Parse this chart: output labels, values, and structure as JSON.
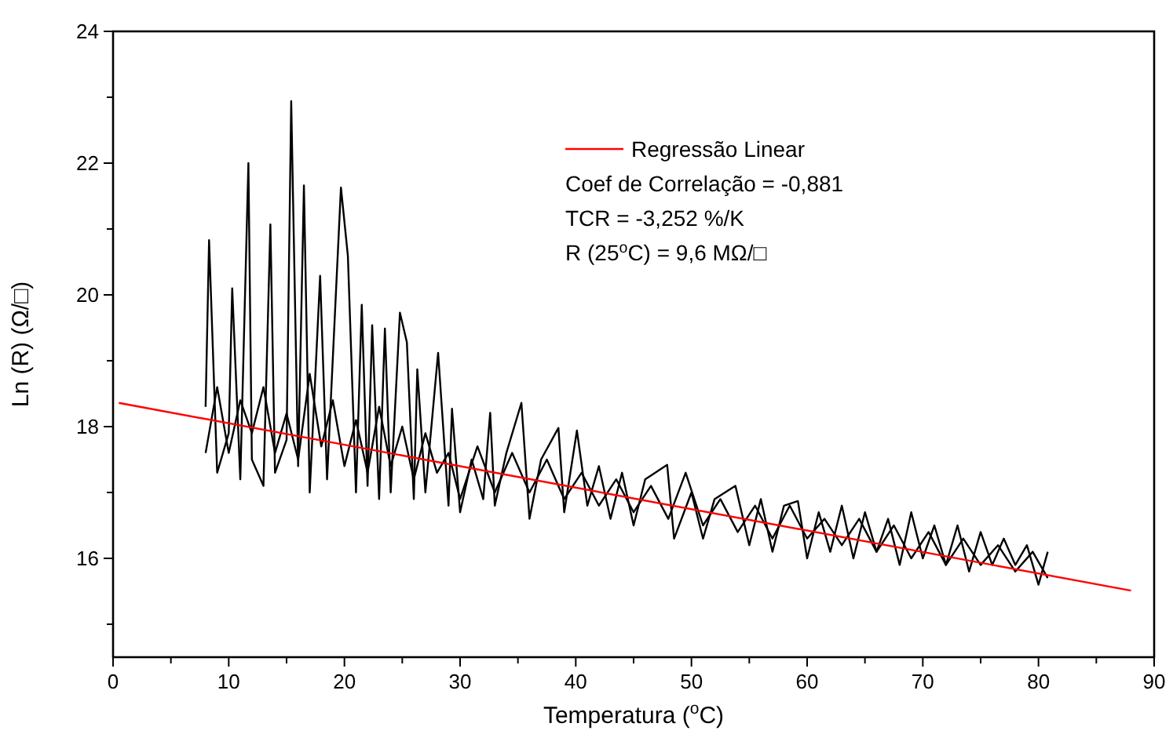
{
  "chart_data": {
    "type": "line",
    "xlabel": "Temperatura ($^{o}$C)",
    "ylabel": "Ln (R) (Ω/□)",
    "xlim": [
      0,
      90
    ],
    "ylim": [
      14.5,
      24
    ],
    "xticks": [
      0,
      {
        "value": 5,
        "label": null
      },
      10,
      {
        "value": 15,
        "label": null
      },
      20,
      {
        "value": 25,
        "label": null
      },
      30,
      {
        "value": 35,
        "label": null
      },
      40,
      {
        "value": 45,
        "label": null
      },
      50,
      {
        "value": 55,
        "label": null
      },
      60,
      {
        "value": 65,
        "label": null
      },
      70,
      {
        "value": 75,
        "label": null
      },
      80,
      {
        "value": 85,
        "label": null
      },
      90
    ],
    "yticks": [
      {
        "value": 15,
        "label": null
      },
      16,
      {
        "value": 17,
        "label": null
      },
      18,
      {
        "value": 19,
        "label": null
      },
      20,
      {
        "value": 21,
        "label": null
      },
      22,
      {
        "value": 23,
        "label": null
      },
      24
    ],
    "grid": false,
    "legend": "top",
    "marker": "none",
    "line_style": "solid",
    "series": [
      {
        "color": "#000000",
        "x": [
          8,
          8.3,
          9,
          10,
          10.3,
          11,
          11.7,
          12,
          13,
          13.6,
          14,
          15,
          15.4,
          16,
          16.5,
          17,
          17.9,
          18.5,
          19.7,
          20.3,
          21,
          21.5,
          22,
          22.4,
          23,
          23.5,
          24,
          24.8,
          25.4,
          26,
          26.3,
          27,
          28.1,
          29,
          29.3,
          30,
          31,
          32,
          32.6,
          33,
          34,
          35.3,
          36,
          37,
          38.5,
          39,
          40.1,
          41,
          42,
          43,
          44,
          45,
          46,
          47.9,
          48.5,
          50,
          51,
          52,
          53.8,
          55,
          56,
          57,
          58,
          59.2,
          60,
          61,
          62,
          63,
          64,
          65,
          66,
          67,
          68,
          69,
          70,
          71,
          72,
          73,
          74,
          75,
          76,
          77,
          78,
          79,
          80,
          80.8
        ],
        "values": [
          18.3,
          20.83,
          17.3,
          17.9,
          20.1,
          17.2,
          22.0,
          17.5,
          17.1,
          21.07,
          17.3,
          17.8,
          22.94,
          17.4,
          21.66,
          17.0,
          20.29,
          17.2,
          21.63,
          20.59,
          17.0,
          19.85,
          17.1,
          19.54,
          16.9,
          19.49,
          17.0,
          19.73,
          19.28,
          16.9,
          18.87,
          17.0,
          19.12,
          16.8,
          18.27,
          16.7,
          17.5,
          16.9,
          18.21,
          16.8,
          17.6,
          18.36,
          16.6,
          17.5,
          17.98,
          16.7,
          17.94,
          16.8,
          17.4,
          16.6,
          17.3,
          16.5,
          17.2,
          17.42,
          16.3,
          17.0,
          16.3,
          16.9,
          17.1,
          16.2,
          16.9,
          16.1,
          16.8,
          16.87,
          16.0,
          16.7,
          16.1,
          16.8,
          16.0,
          16.7,
          16.1,
          16.6,
          15.9,
          16.7,
          16.0,
          16.5,
          15.9,
          16.5,
          15.8,
          16.4,
          15.9,
          16.3,
          15.9,
          16.2,
          15.6,
          16.1
        ]
      },
      {
        "color": "#000000",
        "x": [
          8,
          9,
          10,
          11,
          12,
          13,
          14,
          15,
          16,
          17,
          18,
          19,
          20,
          21,
          22,
          23,
          24,
          25,
          26,
          27,
          28,
          29,
          30,
          31.5,
          33,
          34.5,
          36,
          37.5,
          39,
          40.5,
          42,
          43.5,
          45,
          46.5,
          48,
          49.5,
          51,
          52.5,
          54,
          55.5,
          57,
          58.5,
          60,
          61.5,
          63,
          64.5,
          66,
          67.5,
          69,
          70.5,
          72,
          73.5,
          75,
          76.5,
          78,
          79.5,
          80.8
        ],
        "values": [
          17.6,
          18.6,
          17.6,
          18.4,
          17.9,
          18.6,
          17.6,
          18.2,
          17.5,
          18.8,
          17.7,
          18.4,
          17.4,
          18.1,
          17.3,
          18.3,
          17.4,
          18.0,
          17.2,
          17.9,
          17.3,
          17.6,
          16.9,
          17.7,
          17.0,
          17.6,
          17.0,
          17.5,
          16.9,
          17.3,
          16.8,
          17.2,
          16.7,
          17.1,
          16.6,
          17.3,
          16.5,
          16.9,
          16.4,
          16.8,
          16.3,
          16.8,
          16.3,
          16.6,
          16.2,
          16.6,
          16.1,
          16.5,
          16.0,
          16.4,
          15.9,
          16.3,
          15.9,
          16.2,
          15.8,
          16.1,
          15.7
        ]
      },
      {
        "name": "Regressão Linear",
        "color": "#ff0000",
        "x": [
          0.5,
          88
        ],
        "values": [
          18.36,
          15.51
        ]
      }
    ],
    "annotations": [
      "Coef de Correlação = -0,881",
      "TCR = -3,252 %/K",
      "R (25$^{o}$C) = 9,6 MΩ/□"
    ]
  }
}
